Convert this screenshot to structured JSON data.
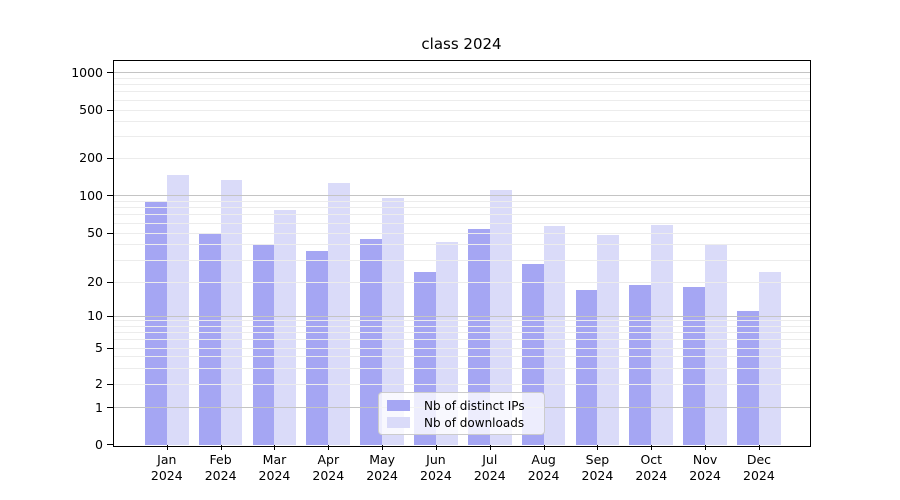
{
  "chart_data": {
    "type": "bar",
    "title": "class 2024",
    "categories": [
      "Jan",
      "Feb",
      "Mar",
      "Apr",
      "May",
      "Jun",
      "Jul",
      "Aug",
      "Sep",
      "Oct",
      "Nov",
      "Dec"
    ],
    "year_label": "2024",
    "series": [
      {
        "name": "Nb of distinct IPs",
        "color": "#a5a6f3",
        "values": [
          88,
          50,
          40,
          36,
          45,
          24,
          54,
          28,
          17,
          19,
          18,
          11
        ]
      },
      {
        "name": "Nb of downloads",
        "color": "#dadbf9",
        "values": [
          146,
          132,
          77,
          125,
          96,
          42,
          110,
          57,
          48,
          58,
          41,
          24
        ]
      }
    ],
    "yscale": "symlog",
    "ytick_values": [
      0,
      1,
      2,
      5,
      10,
      20,
      50,
      100,
      200,
      500,
      1000
    ],
    "ytick_labels": [
      "0",
      "1",
      "2",
      "5",
      "10",
      "20",
      "50",
      "100",
      "200",
      "500",
      "1000"
    ],
    "ylim": [
      0,
      1300
    ],
    "grid": true,
    "legend_position": "lower center"
  }
}
